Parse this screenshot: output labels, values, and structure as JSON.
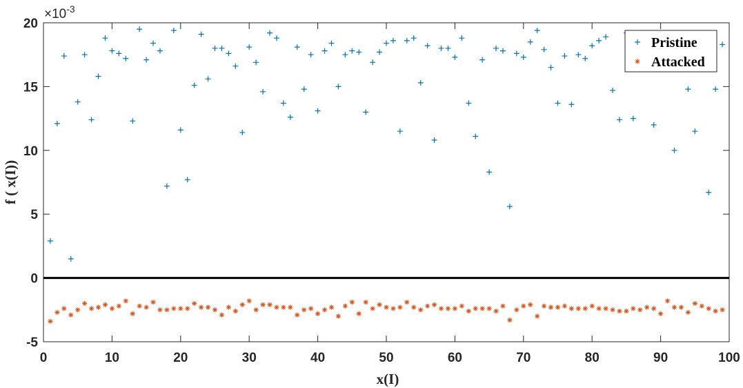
{
  "chart_data": {
    "type": "scatter",
    "xlabel": "x(I)",
    "ylabel": "f ( x(I))",
    "y_exponent_label": "×10",
    "y_exponent_power": "-3",
    "xlim": [
      0,
      100
    ],
    "ylim": [
      -5,
      20
    ],
    "x_ticks": [
      "0",
      "10",
      "20",
      "30",
      "40",
      "50",
      "60",
      "70",
      "80",
      "90",
      "100"
    ],
    "y_ticks": [
      "-5",
      "0",
      "5",
      "10",
      "15",
      "20"
    ],
    "reference_line_y": 0,
    "grid": false,
    "legend_position": "top-right",
    "series": [
      {
        "name": "Pristine",
        "marker": "+",
        "color": "#0072BD",
        "x": [
          1,
          2,
          3,
          4,
          5,
          6,
          7,
          8,
          9,
          10,
          11,
          12,
          13,
          14,
          15,
          16,
          17,
          18,
          19,
          20,
          21,
          22,
          23,
          24,
          25,
          26,
          27,
          28,
          29,
          30,
          31,
          32,
          33,
          34,
          35,
          36,
          37,
          38,
          39,
          40,
          41,
          42,
          43,
          44,
          45,
          46,
          47,
          48,
          49,
          50,
          51,
          52,
          53,
          54,
          55,
          56,
          57,
          58,
          59,
          60,
          61,
          62,
          63,
          64,
          65,
          66,
          67,
          68,
          69,
          70,
          71,
          72,
          73,
          74,
          75,
          76,
          77,
          78,
          79,
          80,
          81,
          82,
          83,
          84,
          85,
          86,
          87,
          88,
          89,
          90,
          91,
          92,
          93,
          94,
          95,
          96,
          97,
          98,
          99
        ],
        "y": [
          2.9,
          12.1,
          17.4,
          1.5,
          13.8,
          17.5,
          12.4,
          15.8,
          18.8,
          17.8,
          17.6,
          17.2,
          12.3,
          19.5,
          17.1,
          18.4,
          17.8,
          7.2,
          19.4,
          11.6,
          7.7,
          15.1,
          19.1,
          15.6,
          18.0,
          18.0,
          17.6,
          16.6,
          11.4,
          18.1,
          16.9,
          14.6,
          19.2,
          18.8,
          13.7,
          12.6,
          18.1,
          14.8,
          17.5,
          13.1,
          17.8,
          18.4,
          15.0,
          17.5,
          17.8,
          17.7,
          13.0,
          16.9,
          17.7,
          18.4,
          18.6,
          11.5,
          18.6,
          18.8,
          15.3,
          18.2,
          10.8,
          18.0,
          18.0,
          17.3,
          18.8,
          13.7,
          11.1,
          17.1,
          8.3,
          18.0,
          17.8,
          5.6,
          17.6,
          17.3,
          18.5,
          19.4,
          17.9,
          16.5,
          13.7,
          17.4,
          13.6,
          17.5,
          17.2,
          18.2,
          18.6,
          18.9,
          14.7,
          12.4,
          19.2,
          12.5,
          18.5,
          19.0,
          12.0,
          18.6,
          18.4,
          10.0,
          18.6,
          14.8,
          11.5,
          18.9,
          6.7,
          14.8,
          18.3
        ]
      },
      {
        "name": "Attacked",
        "marker": "*",
        "color": "#D95319",
        "x": [
          1,
          2,
          3,
          4,
          5,
          6,
          7,
          8,
          9,
          10,
          11,
          12,
          13,
          14,
          15,
          16,
          17,
          18,
          19,
          20,
          21,
          22,
          23,
          24,
          25,
          26,
          27,
          28,
          29,
          30,
          31,
          32,
          33,
          34,
          35,
          36,
          37,
          38,
          39,
          40,
          41,
          42,
          43,
          44,
          45,
          46,
          47,
          48,
          49,
          50,
          51,
          52,
          53,
          54,
          55,
          56,
          57,
          58,
          59,
          60,
          61,
          62,
          63,
          64,
          65,
          66,
          67,
          68,
          69,
          70,
          71,
          72,
          73,
          74,
          75,
          76,
          77,
          78,
          79,
          80,
          81,
          82,
          83,
          84,
          85,
          86,
          87,
          88,
          89,
          90,
          91,
          92,
          93,
          94,
          95,
          96,
          97,
          98,
          99
        ],
        "y": [
          -3.4,
          -2.7,
          -2.4,
          -2.9,
          -2.5,
          -2.0,
          -2.4,
          -2.3,
          -2.1,
          -2.4,
          -2.2,
          -1.8,
          -2.8,
          -2.2,
          -2.3,
          -1.9,
          -2.5,
          -2.5,
          -2.4,
          -2.4,
          -2.4,
          -2.0,
          -2.3,
          -2.3,
          -2.5,
          -2.9,
          -2.3,
          -2.6,
          -2.1,
          -1.8,
          -2.5,
          -2.1,
          -2.1,
          -2.3,
          -2.3,
          -2.3,
          -2.9,
          -2.5,
          -2.4,
          -2.8,
          -2.5,
          -2.3,
          -3.0,
          -2.2,
          -1.9,
          -2.8,
          -1.9,
          -2.4,
          -2.1,
          -2.3,
          -2.4,
          -2.3,
          -1.9,
          -2.3,
          -2.5,
          -2.2,
          -2.1,
          -2.4,
          -2.4,
          -2.4,
          -2.2,
          -2.6,
          -2.4,
          -2.4,
          -2.4,
          -2.6,
          -2.2,
          -3.3,
          -2.5,
          -2.2,
          -2.1,
          -3.0,
          -2.2,
          -2.3,
          -2.3,
          -2.2,
          -2.4,
          -2.4,
          -2.4,
          -2.2,
          -2.4,
          -2.4,
          -2.5,
          -2.6,
          -2.6,
          -2.4,
          -2.5,
          -2.3,
          -2.4,
          -2.8,
          -1.8,
          -2.3,
          -2.3,
          -2.7,
          -2.0,
          -2.2,
          -2.4,
          -2.6,
          -2.5
        ]
      }
    ]
  }
}
